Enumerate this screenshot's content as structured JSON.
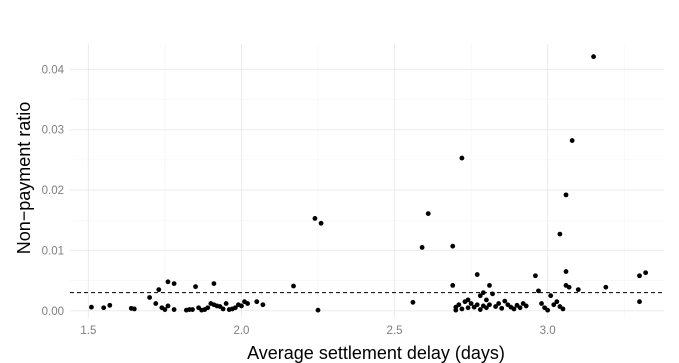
{
  "chart_data": {
    "type": "scatter",
    "title": "",
    "xlabel": "Average settlement delay (days)",
    "ylabel": "Non−payment ratio",
    "xlim": [
      1.44,
      3.38
    ],
    "ylim": [
      -0.0012,
      0.0442
    ],
    "x_ticks": [
      1.5,
      2.0,
      2.5,
      3.0
    ],
    "x_tick_labels": [
      "1.5",
      "2.0",
      "2.5",
      "3.0"
    ],
    "y_ticks": [
      0.0,
      0.01,
      0.02,
      0.03,
      0.04
    ],
    "y_tick_labels": [
      "0.00",
      "0.01",
      "0.02",
      "0.03",
      "0.04"
    ],
    "grid": true,
    "reference_line": {
      "orientation": "horizontal",
      "y": 0.003,
      "style": "dashed"
    },
    "points": [
      [
        1.51,
        0.0006
      ],
      [
        1.55,
        0.0005
      ],
      [
        1.57,
        0.0009
      ],
      [
        1.64,
        0.0004
      ],
      [
        1.65,
        0.0003
      ],
      [
        1.7,
        0.0022
      ],
      [
        1.72,
        0.0012
      ],
      [
        1.73,
        0.0035
      ],
      [
        1.74,
        0.0005
      ],
      [
        1.75,
        0.0002
      ],
      [
        1.76,
        0.0048
      ],
      [
        1.76,
        0.0008
      ],
      [
        1.78,
        0.0002
      ],
      [
        1.78,
        0.0045
      ],
      [
        1.82,
        0.0001
      ],
      [
        1.83,
        0.0002
      ],
      [
        1.84,
        0.0002
      ],
      [
        1.85,
        0.004
      ],
      [
        1.86,
        0.0005
      ],
      [
        1.87,
        0.0001
      ],
      [
        1.88,
        0.0002
      ],
      [
        1.89,
        0.0005
      ],
      [
        1.9,
        0.0012
      ],
      [
        1.91,
        0.0045
      ],
      [
        1.91,
        0.001
      ],
      [
        1.92,
        0.0008
      ],
      [
        1.93,
        0.0007
      ],
      [
        1.94,
        0.0003
      ],
      [
        1.95,
        0.0012
      ],
      [
        1.96,
        0.0002
      ],
      [
        1.97,
        0.0003
      ],
      [
        1.98,
        0.0005
      ],
      [
        1.99,
        0.001
      ],
      [
        2.0,
        0.0008
      ],
      [
        2.01,
        0.0015
      ],
      [
        2.02,
        0.0012
      ],
      [
        2.05,
        0.0015
      ],
      [
        2.07,
        0.001
      ],
      [
        2.17,
        0.0041
      ],
      [
        2.24,
        0.0153
      ],
      [
        2.26,
        0.0145
      ],
      [
        2.25,
        0.0001
      ],
      [
        2.56,
        0.0014
      ],
      [
        2.59,
        0.0105
      ],
      [
        2.61,
        0.0161
      ],
      [
        2.69,
        0.0042
      ],
      [
        2.69,
        0.0107
      ],
      [
        2.7,
        0.0006
      ],
      [
        2.7,
        0.0001
      ],
      [
        2.71,
        0.001
      ],
      [
        2.72,
        0.0253
      ],
      [
        2.72,
        0.0003
      ],
      [
        2.73,
        0.0015
      ],
      [
        2.74,
        0.0005
      ],
      [
        2.74,
        0.0018
      ],
      [
        2.75,
        0.0012
      ],
      [
        2.76,
        0.0006
      ],
      [
        2.77,
        0.001
      ],
      [
        2.77,
        0.006
      ],
      [
        2.78,
        0.0002
      ],
      [
        2.78,
        0.0025
      ],
      [
        2.79,
        0.003
      ],
      [
        2.79,
        0.0008
      ],
      [
        2.8,
        0.0005
      ],
      [
        2.8,
        0.0018
      ],
      [
        2.81,
        0.001
      ],
      [
        2.81,
        0.0042
      ],
      [
        2.82,
        0.0028
      ],
      [
        2.83,
        0.0007
      ],
      [
        2.84,
        0.0012
      ],
      [
        2.85,
        0.0004
      ],
      [
        2.86,
        0.0016
      ],
      [
        2.87,
        0.001
      ],
      [
        2.88,
        0.0006
      ],
      [
        2.89,
        0.0003
      ],
      [
        2.9,
        0.0009
      ],
      [
        2.91,
        0.0005
      ],
      [
        2.92,
        0.0012
      ],
      [
        2.93,
        0.0008
      ],
      [
        2.96,
        0.0058
      ],
      [
        2.97,
        0.0033
      ],
      [
        2.98,
        0.0012
      ],
      [
        2.99,
        0.0005
      ],
      [
        3.0,
        0.0001
      ],
      [
        3.01,
        0.0025
      ],
      [
        3.02,
        0.001
      ],
      [
        3.03,
        0.0015
      ],
      [
        3.04,
        0.0127
      ],
      [
        3.04,
        0.0007
      ],
      [
        3.05,
        0.0003
      ],
      [
        3.06,
        0.0065
      ],
      [
        3.06,
        0.0192
      ],
      [
        3.06,
        0.0042
      ],
      [
        3.07,
        0.0039
      ],
      [
        3.08,
        0.0282
      ],
      [
        3.1,
        0.0035
      ],
      [
        3.15,
        0.0421
      ],
      [
        3.19,
        0.0039
      ],
      [
        3.3,
        0.0058
      ],
      [
        3.3,
        0.0015
      ],
      [
        3.32,
        0.0063
      ]
    ]
  }
}
